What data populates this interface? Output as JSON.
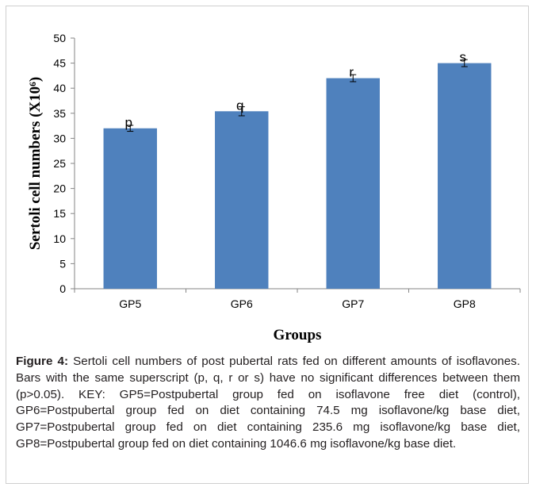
{
  "chart_data": {
    "type": "bar",
    "categories": [
      "GP5",
      "GP6",
      "GP7",
      "GP8"
    ],
    "values": [
      32,
      35.4,
      42,
      45
    ],
    "errors": [
      0.6,
      0.9,
      0.7,
      0.7
    ],
    "superscripts": [
      "p",
      "q",
      "r",
      "s"
    ],
    "title": "",
    "xlabel": "Groups",
    "ylabel": "Sertoli cell numbers (X10⁶)",
    "ylim": [
      0,
      50
    ],
    "yticks": [
      0,
      5,
      10,
      15,
      20,
      25,
      30,
      35,
      40,
      45,
      50
    ],
    "bar_color": "#4f81bd",
    "grid": false,
    "legend": "none"
  },
  "caption": {
    "label": "Figure 4:",
    "text": " Sertoli cell numbers of post pubertal rats fed on different amounts of isoflavones. Bars with the same superscript (p, q, r or s) have no significant differences between them (p>0.05). KEY: GP5=Postpubertal group fed on isoflavone free diet (control), GP6=Postpubertal group fed on diet containing 74.5 mg isoflavone/kg base diet, GP7=Postpubertal group fed on diet containing 235.6 mg isoflavone/kg base diet, GP8=Postpubertal group fed on diet containing 1046.6 mg isoflavone/kg base diet."
  }
}
